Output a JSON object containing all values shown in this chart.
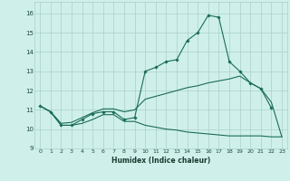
{
  "xlabel": "Humidex (Indice chaleur)",
  "bg_color": "#cff0ea",
  "line_color": "#1a6b5a",
  "grid_color": "#aacfc8",
  "xlim": [
    -0.5,
    23.5
  ],
  "ylim": [
    9,
    16.6
  ],
  "yticks": [
    9,
    10,
    11,
    12,
    13,
    14,
    15,
    16
  ],
  "xticks": [
    0,
    1,
    2,
    3,
    4,
    5,
    6,
    7,
    8,
    9,
    10,
    11,
    12,
    13,
    14,
    15,
    16,
    17,
    18,
    19,
    20,
    21,
    22,
    23
  ],
  "line1_x": [
    0,
    1,
    2,
    3,
    4,
    5,
    6,
    7,
    8,
    9,
    10,
    11,
    12,
    13,
    14,
    15,
    16,
    17,
    18,
    19,
    20,
    21,
    22
  ],
  "line1_y": [
    11.2,
    10.9,
    10.2,
    10.2,
    10.5,
    10.8,
    10.9,
    10.9,
    10.5,
    10.6,
    13.0,
    13.2,
    13.5,
    13.6,
    14.6,
    15.0,
    15.9,
    15.8,
    13.5,
    13.0,
    12.4,
    12.1,
    11.1
  ],
  "line2_x": [
    0,
    1,
    2,
    3,
    4,
    5,
    6,
    7,
    8,
    9,
    10,
    11,
    12,
    13,
    14,
    15,
    16,
    17,
    18,
    19,
    20,
    21,
    22,
    23
  ],
  "line2_y": [
    11.2,
    10.9,
    10.3,
    10.35,
    10.6,
    10.85,
    11.05,
    11.05,
    10.9,
    11.0,
    11.55,
    11.7,
    11.85,
    12.0,
    12.15,
    12.25,
    12.4,
    12.5,
    12.6,
    12.75,
    12.4,
    12.1,
    11.4,
    9.6
  ],
  "line3_x": [
    0,
    1,
    2,
    3,
    4,
    5,
    6,
    7,
    8,
    9,
    10,
    11,
    12,
    13,
    14,
    15,
    16,
    17,
    18,
    19,
    20,
    21,
    22,
    23
  ],
  "line3_y": [
    11.2,
    10.9,
    10.2,
    10.2,
    10.3,
    10.5,
    10.75,
    10.75,
    10.4,
    10.4,
    10.2,
    10.1,
    10.0,
    9.95,
    9.85,
    9.8,
    9.75,
    9.7,
    9.65,
    9.65,
    9.65,
    9.65,
    9.6,
    9.6
  ]
}
